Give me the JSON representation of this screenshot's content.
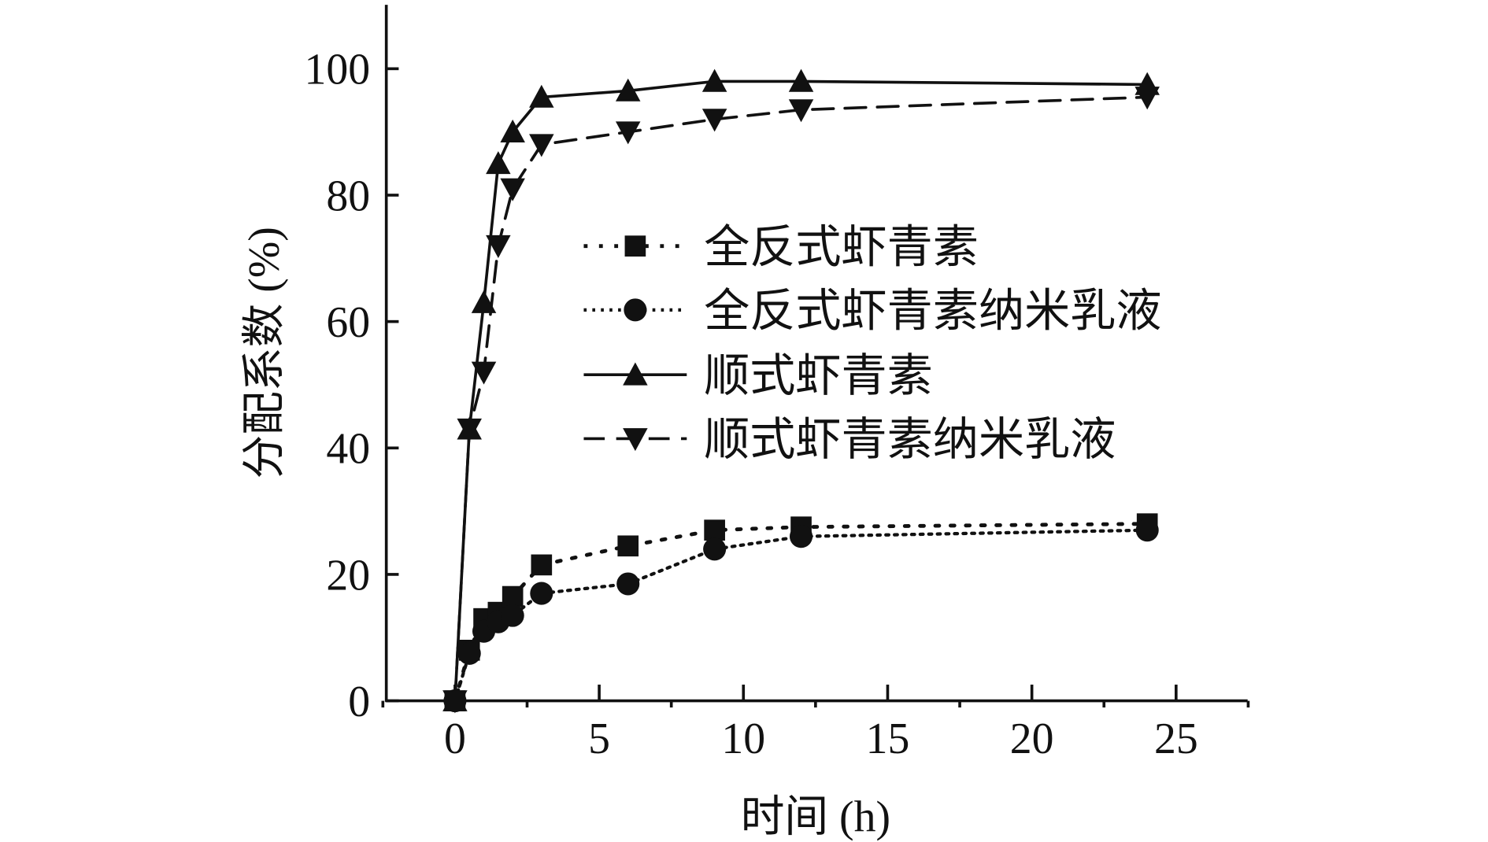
{
  "chart_data": {
    "type": "line",
    "title": "",
    "xlabel": "时间 (h)",
    "ylabel": "分配系数 (%)",
    "xlim": [
      -2.5,
      27.5
    ],
    "ylim": [
      0,
      110
    ],
    "xticks": [
      0,
      5,
      10,
      15,
      20,
      25
    ],
    "yticks": [
      0,
      20,
      40,
      60,
      80,
      100
    ],
    "grid": false,
    "legend_position": "center-right",
    "x": [
      0,
      0.5,
      1,
      1.5,
      2,
      3,
      6,
      9,
      12,
      24
    ],
    "series": [
      {
        "name": "全反式虾青素",
        "marker": "square",
        "line": "dashdot",
        "values": [
          0,
          8,
          13,
          14,
          16.5,
          21.5,
          24.5,
          27,
          27.5,
          28
        ]
      },
      {
        "name": "全反式虾青素纳米乳液",
        "marker": "circle",
        "line": "dotted",
        "values": [
          0,
          7.5,
          11,
          12.5,
          13.5,
          17,
          18.5,
          24,
          26,
          27
        ]
      },
      {
        "name": "顺式虾青素",
        "marker": "triangle-up",
        "line": "solid",
        "values": [
          0,
          43,
          63,
          85,
          90,
          95.5,
          96.5,
          98,
          98,
          97.5
        ]
      },
      {
        "name": "顺式虾青素纳米乳液",
        "marker": "triangle-down",
        "line": "dashed",
        "values": [
          0,
          43,
          52,
          72,
          81,
          88,
          90,
          92,
          93.5,
          95.5
        ]
      }
    ]
  }
}
